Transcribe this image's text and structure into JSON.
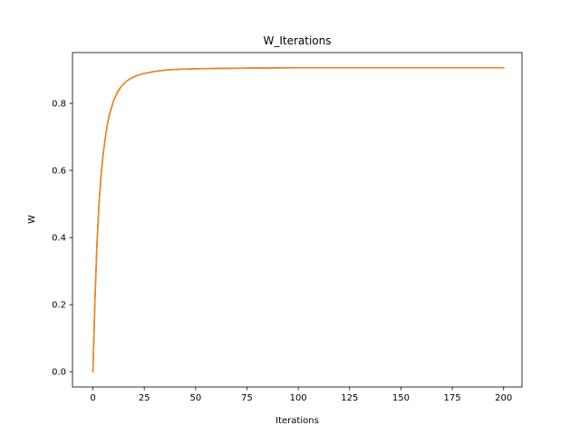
{
  "chart_data": {
    "type": "line",
    "title": "W_Iterations",
    "xlabel": "Iterations",
    "ylabel": "W",
    "xlim": [
      -9.95,
      208.95
    ],
    "ylim": [
      -0.0453,
      0.9513
    ],
    "xticks": [
      0,
      25,
      50,
      75,
      100,
      125,
      150,
      175,
      200
    ],
    "yticks": [
      0.0,
      0.2,
      0.4,
      0.6,
      0.8
    ],
    "xtick_labels": [
      "0",
      "25",
      "50",
      "75",
      "100",
      "125",
      "150",
      "175",
      "200"
    ],
    "ytick_labels": [
      "0.0",
      "0.2",
      "0.4",
      "0.6",
      "0.8"
    ],
    "grid": false,
    "series": [
      {
        "color": "#1f77b4",
        "x": [
          0,
          1,
          2,
          3,
          4,
          5,
          6,
          7,
          8,
          10,
          12,
          14,
          16,
          18,
          20,
          22,
          25,
          30,
          35,
          40,
          50,
          60,
          75,
          100,
          125,
          150,
          175,
          200
        ],
        "y": [
          0.0,
          0.217,
          0.385,
          0.504,
          0.588,
          0.649,
          0.697,
          0.736,
          0.765,
          0.807,
          0.834,
          0.852,
          0.864,
          0.873,
          0.879,
          0.884,
          0.889,
          0.895,
          0.899,
          0.901,
          0.903,
          0.904,
          0.905,
          0.906,
          0.906,
          0.906,
          0.906,
          0.906
        ]
      },
      {
        "color": "#ff7f0e",
        "x": [
          0,
          1,
          2,
          3,
          4,
          5,
          6,
          7,
          8,
          10,
          12,
          14,
          16,
          18,
          20,
          22,
          25,
          30,
          35,
          40,
          50,
          60,
          75,
          100,
          125,
          150,
          175,
          200
        ],
        "y": [
          0.0,
          0.217,
          0.385,
          0.504,
          0.588,
          0.649,
          0.697,
          0.736,
          0.765,
          0.807,
          0.834,
          0.852,
          0.864,
          0.873,
          0.879,
          0.884,
          0.889,
          0.895,
          0.899,
          0.901,
          0.903,
          0.904,
          0.905,
          0.906,
          0.906,
          0.906,
          0.906,
          0.906
        ]
      }
    ]
  }
}
